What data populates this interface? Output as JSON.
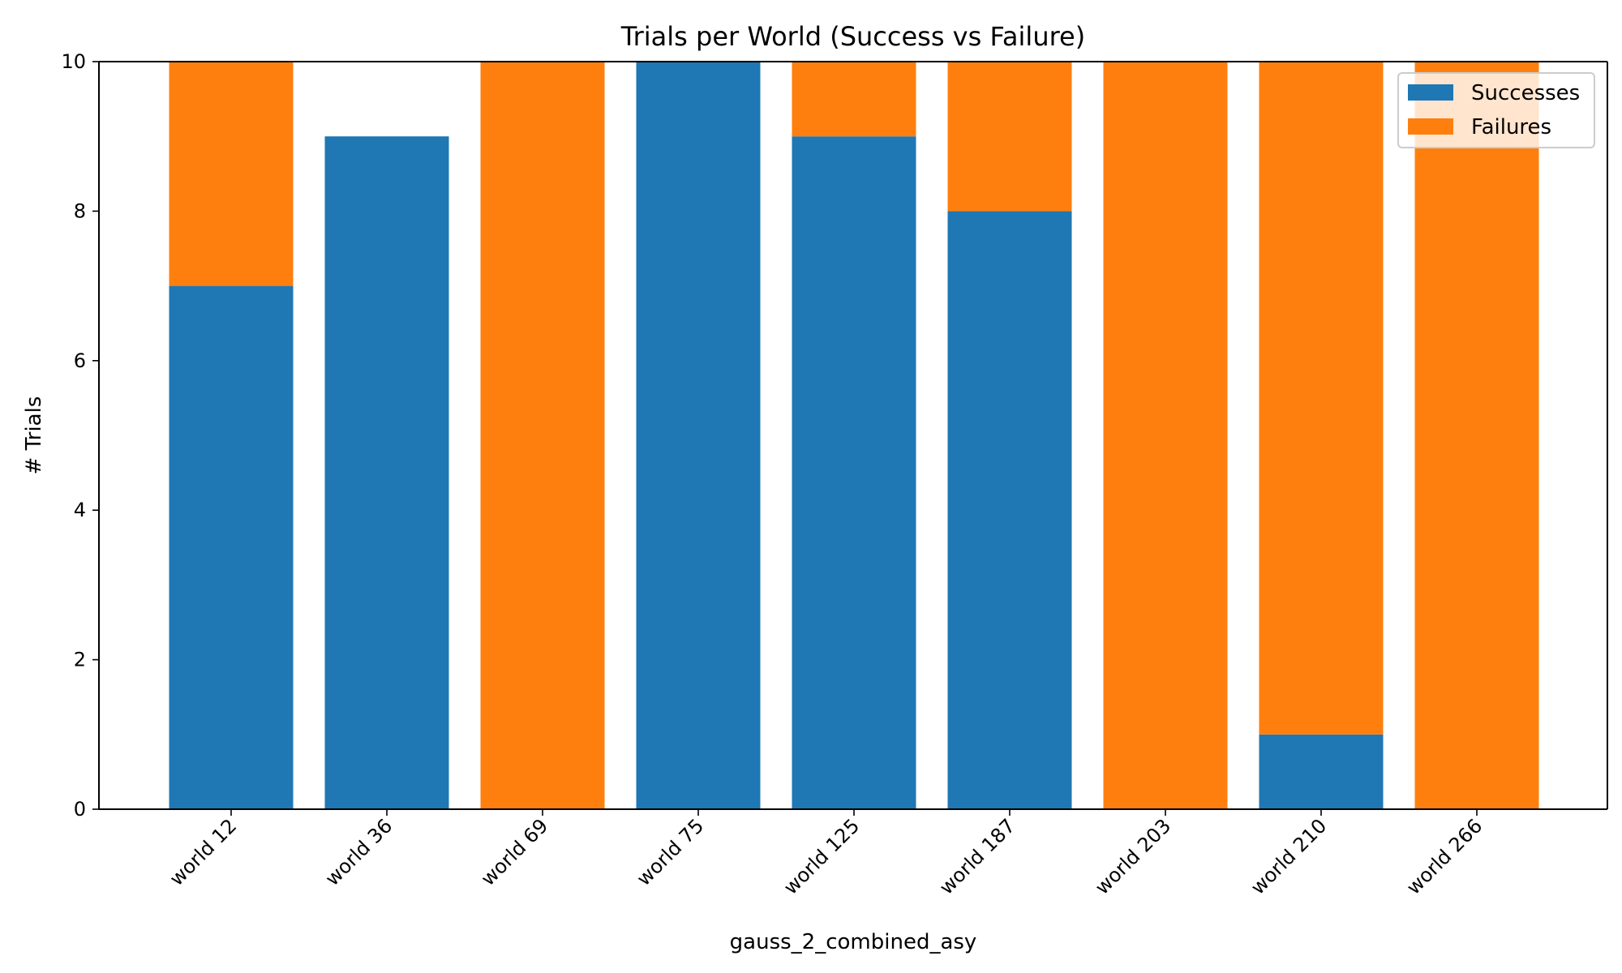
{
  "chart_data": {
    "type": "bar",
    "stacked": true,
    "title": "Trials per World (Success vs Failure)",
    "xlabel": "gauss_2_combined_asy",
    "ylabel": "# Trials",
    "ylim": [
      0,
      10
    ],
    "yticks": [
      "0",
      "2",
      "4",
      "6",
      "8",
      "10"
    ],
    "categories": [
      "world 12",
      "world 36",
      "world 69",
      "world 75",
      "world 125",
      "world 187",
      "world 203",
      "world 210",
      "world 266"
    ],
    "series": [
      {
        "name": "Successes",
        "color": "#1f77b4",
        "values": [
          7,
          9,
          0,
          10,
          9,
          8,
          0,
          1,
          0
        ]
      },
      {
        "name": "Failures",
        "color": "#ff7f0e",
        "values": [
          3,
          0,
          10,
          0,
          1,
          2,
          10,
          9,
          10
        ]
      }
    ],
    "legend_position": "top-right",
    "grid": false
  }
}
